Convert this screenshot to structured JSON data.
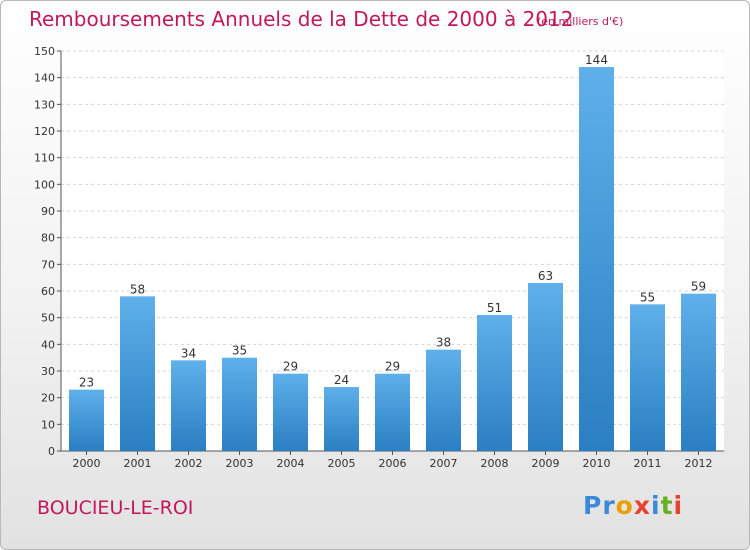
{
  "header": {
    "title": "Remboursements Annuels de la Dette de 2000 à 2012",
    "subtitle": "(en milliers d'€)"
  },
  "footer": {
    "place": "BOUCIEU-LE-ROI",
    "logo": "Proxiti",
    "logo_letters": [
      {
        "ch": "P",
        "color": "#3b8ad9"
      },
      {
        "ch": "r",
        "color": "#3b8ad9"
      },
      {
        "ch": "o",
        "color": "#e8a100"
      },
      {
        "ch": "x",
        "color": "#e8412f"
      },
      {
        "ch": "i",
        "color": "#3b8ad9"
      },
      {
        "ch": "t",
        "color": "#6ab023"
      },
      {
        "ch": "i",
        "color": "#e8412f"
      }
    ]
  },
  "colors": {
    "accent": "#c2185b",
    "bar_top": "#5fb0ea",
    "bar_bottom": "#2a7fc2"
  },
  "chart_data": {
    "type": "bar",
    "categories": [
      "2000",
      "2001",
      "2002",
      "2003",
      "2004",
      "2005",
      "2006",
      "2007",
      "2008",
      "2009",
      "2010",
      "2011",
      "2012"
    ],
    "values": [
      23,
      58,
      34,
      35,
      29,
      24,
      29,
      38,
      51,
      63,
      144,
      55,
      59
    ],
    "ylim": [
      0,
      150
    ],
    "yticks": [
      0,
      10,
      20,
      30,
      40,
      50,
      60,
      70,
      80,
      90,
      100,
      110,
      120,
      130,
      140,
      150
    ],
    "grid": true,
    "data_labels": true
  }
}
